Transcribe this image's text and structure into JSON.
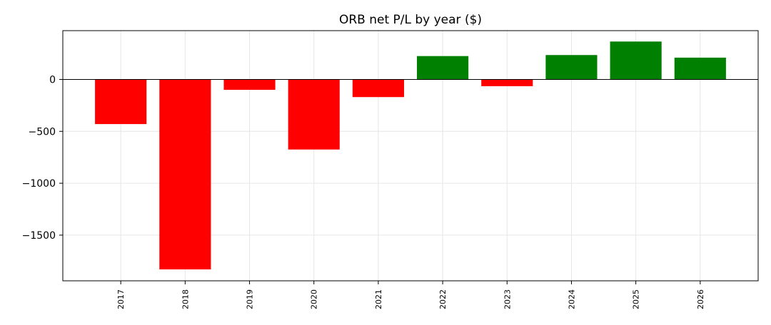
{
  "chart_data": {
    "type": "bar",
    "title": "ORB net P/L by year ($)",
    "xlabel": "",
    "ylabel": "",
    "categories": [
      "2017",
      "2018",
      "2019",
      "2020",
      "2021",
      "2022",
      "2023",
      "2024",
      "2025",
      "2026"
    ],
    "values": [
      -430,
      -1830,
      -100,
      -675,
      -170,
      225,
      -65,
      235,
      365,
      210
    ],
    "ylim": [
      -1940,
      470
    ],
    "yticks": [
      0,
      -500,
      -1000,
      -1500
    ],
    "ytick_labels": [
      "0",
      "−500",
      "−1000",
      "−1500"
    ],
    "grid": true,
    "colors": {
      "positive": "#008000",
      "negative": "#ff0000",
      "zero_line": "#000000"
    }
  }
}
